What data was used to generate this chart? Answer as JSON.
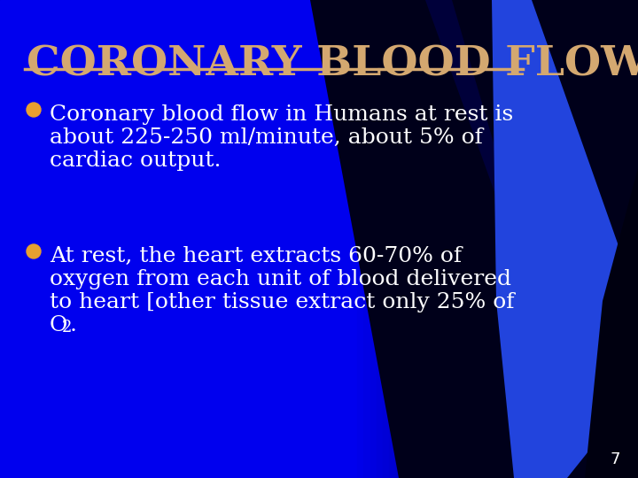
{
  "title": "CORONARY BLOOD FLOW",
  "title_color": "#D4A870",
  "title_fontsize": 34,
  "bullet_color": "#E8A030",
  "text_color": "#FFFFFF",
  "body_fontsize": 18,
  "bg_blue": "#0000EE",
  "bg_dark": "#000030",
  "slide_number": "7",
  "bullet1_line1": "Coronary blood flow in Humans at rest is",
  "bullet1_line2": "about 225-250 ml/minute, about 5% of",
  "bullet1_line3": "cardiac output.",
  "bullet2_line1": "At rest, the heart extracts 60-70% of",
  "bullet2_line2": "oxygen from each unit of blood delivered",
  "bullet2_line3": "to heart [other tissue extract only 25% of",
  "bullet2_line4a": "O",
  "bullet2_line4b": "2",
  "bullet2_line4c": "."
}
